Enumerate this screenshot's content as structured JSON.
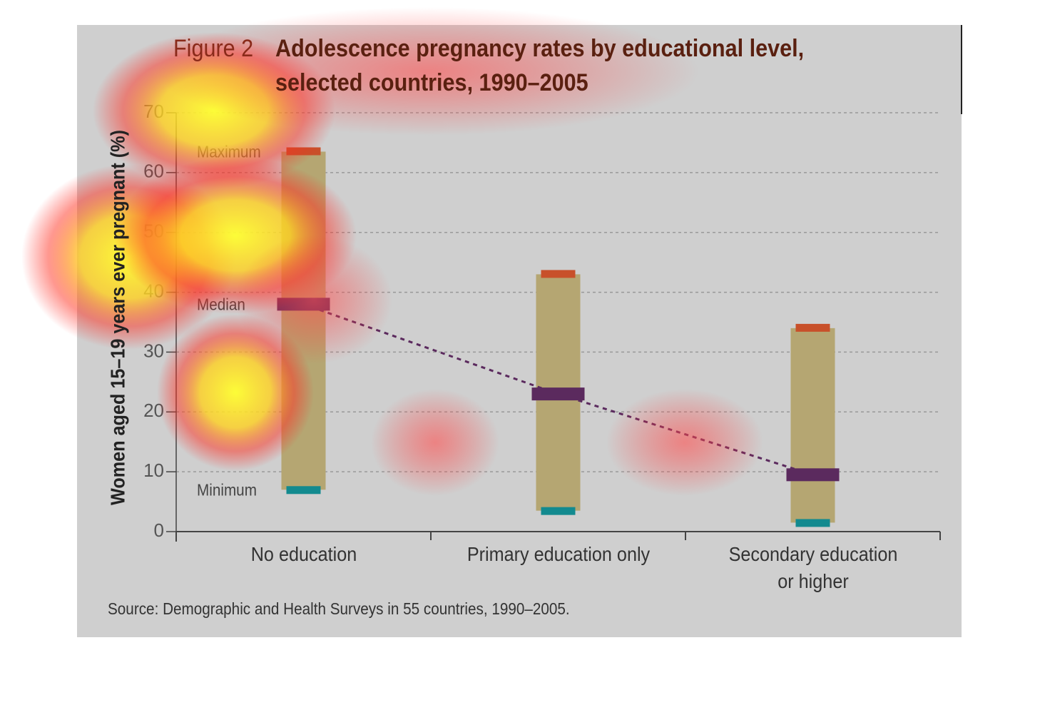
{
  "chart_data": {
    "type": "range",
    "title_prefix": "Figure 2",
    "title": [
      "Adolescence pregnancy rates by educational level,",
      "selected countries, 1990–2005"
    ],
    "y_label": "Women aged 15–19 years ever pregnant (%)",
    "source": "Source: Demographic and Health Surveys in 55 countries, 1990–2005.",
    "categories": [
      "No education",
      "Primary education only",
      "Secondary education\nor higher"
    ],
    "series": [
      {
        "name": "Maximum",
        "color": "#c8502a",
        "values": [
          63.5,
          43,
          34
        ]
      },
      {
        "name": "Median",
        "color": "#5b2a5e",
        "values": [
          38,
          23,
          9.5
        ]
      },
      {
        "name": "Minimum",
        "color": "#138a8f",
        "values": [
          7,
          3.5,
          1.5
        ]
      }
    ],
    "range_color": "#b5a672",
    "ylim": [
      0,
      70
    ],
    "yticks": [
      0,
      10,
      20,
      30,
      40,
      50,
      60,
      70
    ],
    "grid": true
  }
}
